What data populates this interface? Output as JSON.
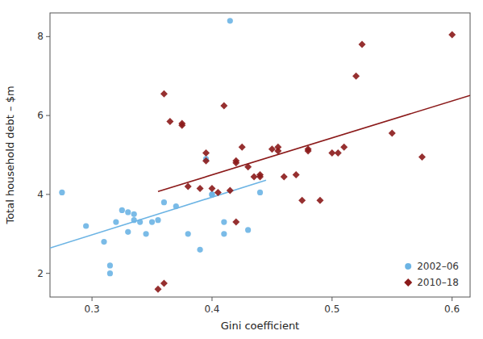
{
  "chart_data": {
    "type": "scatter",
    "x_label": "Gini coefficient",
    "y_label": "Total household debt – $m",
    "xlim": [
      0.265,
      0.615
    ],
    "ylim": [
      1.4,
      8.6
    ],
    "xticks": [
      0.3,
      0.4,
      0.5,
      0.6
    ],
    "yticks": [
      2,
      4,
      6,
      8
    ],
    "grid": false,
    "legend": "lower right",
    "series": [
      {
        "name": "2002–06",
        "color": "#6cb4e4",
        "marker": "circle",
        "x": [
          0.275,
          0.295,
          0.31,
          0.315,
          0.315,
          0.32,
          0.325,
          0.33,
          0.33,
          0.335,
          0.335,
          0.34,
          0.345,
          0.35,
          0.355,
          0.36,
          0.37,
          0.38,
          0.39,
          0.395,
          0.4,
          0.4,
          0.41,
          0.41,
          0.415,
          0.43,
          0.44
        ],
        "values": [
          4.05,
          3.2,
          2.8,
          2.2,
          2.0,
          3.3,
          3.6,
          3.05,
          3.55,
          3.5,
          3.35,
          3.3,
          3.0,
          3.3,
          3.35,
          3.8,
          3.7,
          3.0,
          2.6,
          4.9,
          4.0,
          4.0,
          3.3,
          3.0,
          8.4,
          3.1,
          4.05
        ]
      },
      {
        "name": "2010–18",
        "color": "#8b1a1a",
        "marker": "diamond",
        "x": [
          0.355,
          0.36,
          0.36,
          0.365,
          0.375,
          0.375,
          0.38,
          0.39,
          0.395,
          0.395,
          0.4,
          0.405,
          0.41,
          0.415,
          0.42,
          0.42,
          0.42,
          0.425,
          0.43,
          0.435,
          0.44,
          0.44,
          0.45,
          0.455,
          0.455,
          0.46,
          0.47,
          0.475,
          0.48,
          0.48,
          0.49,
          0.5,
          0.505,
          0.51,
          0.52,
          0.525,
          0.55,
          0.575,
          0.6
        ],
        "values": [
          1.6,
          1.75,
          6.55,
          5.85,
          5.75,
          5.8,
          4.2,
          4.15,
          4.85,
          5.05,
          4.15,
          4.05,
          6.25,
          4.1,
          4.85,
          4.8,
          3.3,
          5.2,
          4.7,
          4.45,
          4.5,
          4.45,
          5.15,
          5.1,
          5.2,
          4.45,
          4.5,
          3.85,
          5.15,
          5.1,
          3.85,
          5.05,
          5.05,
          5.2,
          7.0,
          7.8,
          5.55,
          4.95,
          8.05
        ]
      },
      {
        "type": "line",
        "color": "#6cb4e4",
        "line_style": "solid",
        "x": [
          0.265,
          0.445
        ],
        "values": [
          2.6427,
          4.3603
        ]
      },
      {
        "type": "line",
        "color": "#8b1a1a",
        "line_style": "solid",
        "x": [
          0.355,
          0.615
        ],
        "values": [
          4.0738,
          6.5103
        ]
      }
    ]
  }
}
